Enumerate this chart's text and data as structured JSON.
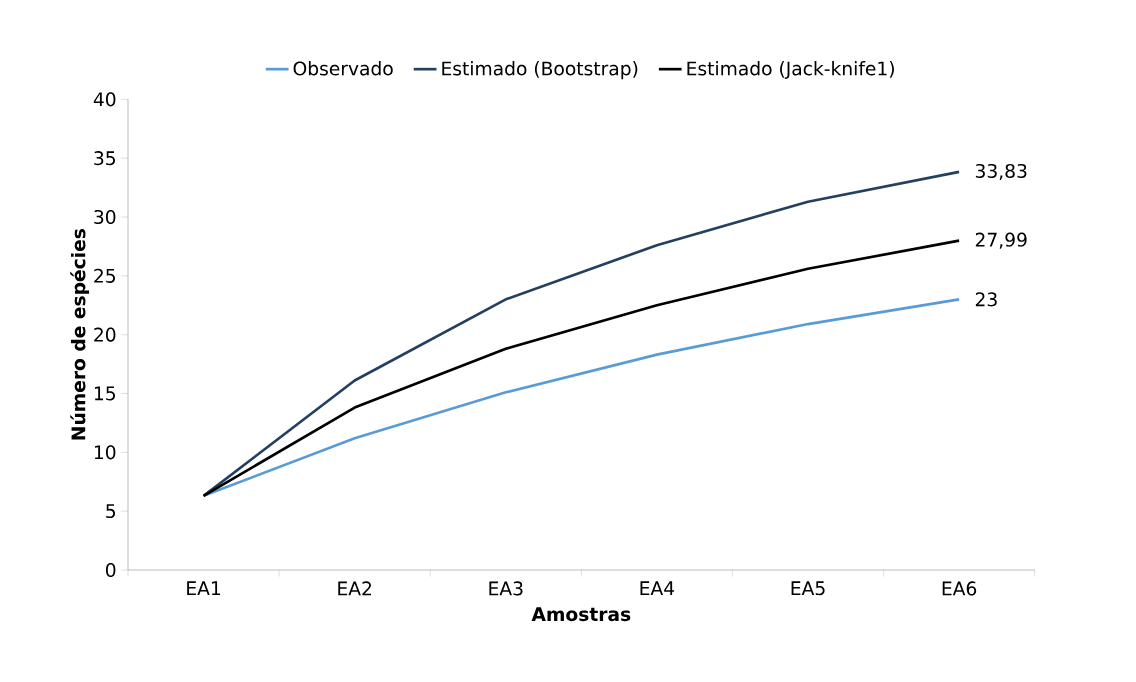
{
  "chart_data": {
    "type": "line",
    "xlabel": "Amostras",
    "ylabel": "Número de espécies",
    "categories": [
      "EA1",
      "EA2",
      "EA3",
      "EA4",
      "EA5",
      "EA6"
    ],
    "series": [
      {
        "name": "Observado",
        "color": "#5b9bd5",
        "values": [
          6.3,
          11.2,
          15.1,
          18.3,
          20.9,
          23
        ],
        "value_labels": [
          null,
          null,
          null,
          null,
          null,
          "23"
        ]
      },
      {
        "name": "Estimado (Bootstrap)",
        "color": "#243f60",
        "values": [
          6.3,
          16.1,
          23.0,
          27.6,
          31.3,
          33.83
        ],
        "value_labels": [
          null,
          null,
          null,
          null,
          null,
          "33,83"
        ]
      },
      {
        "name": "Estimado (Jack-knife1)",
        "color": "#000000",
        "values": [
          6.3,
          13.8,
          18.8,
          22.5,
          25.6,
          27.99
        ],
        "value_labels": [
          null,
          null,
          null,
          null,
          null,
          "27,99"
        ]
      }
    ],
    "ylim": [
      0,
      40
    ],
    "yticks": [
      0,
      5,
      10,
      15,
      20,
      25,
      30,
      35,
      40
    ],
    "grid": false,
    "legend": "top",
    "marker": "none",
    "line_style": "solid"
  }
}
